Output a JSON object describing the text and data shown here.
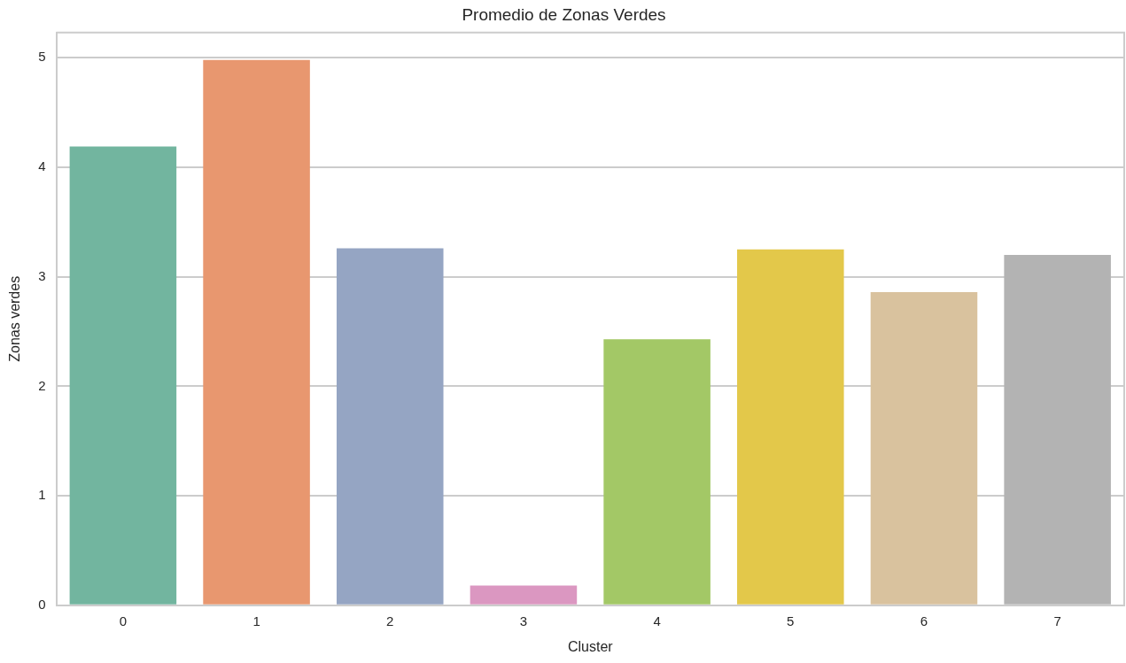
{
  "chart_data": {
    "type": "bar",
    "title": "Promedio de Zonas Verdes",
    "xlabel": "Cluster",
    "ylabel": "Zonas verdes",
    "categories": [
      "0",
      "1",
      "2",
      "3",
      "4",
      "5",
      "6",
      "7"
    ],
    "values": [
      4.19,
      4.98,
      3.26,
      0.18,
      2.43,
      3.25,
      2.86,
      3.2
    ],
    "colors": [
      "#72b59f",
      "#e8976f",
      "#95a5c3",
      "#db97c1",
      "#a3c866",
      "#e3c84a",
      "#d9c29e",
      "#b3b3b3"
    ],
    "ylim": [
      0,
      5.23
    ],
    "yticks": [
      0,
      1,
      2,
      3,
      4,
      5
    ],
    "grid": "y",
    "legend": false
  }
}
